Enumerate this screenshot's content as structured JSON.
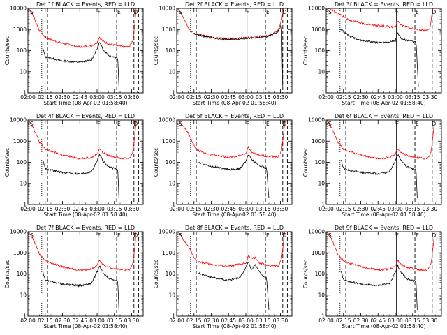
{
  "chart_data": {
    "type": "line",
    "y_scale": "log",
    "ylim": [
      1,
      10000
    ],
    "x_range": [
      "02:00",
      "03:40"
    ],
    "xticks": [
      "02:00",
      "02:15",
      "02:30",
      "02:45",
      "03:00",
      "03:15",
      "03:30"
    ],
    "yticks": [
      "1",
      "10",
      "100",
      "1000",
      "10000"
    ],
    "xlabel": "Start Time (08-Apr-02 01:58:40)",
    "ylabel": "Counts/sec",
    "markers": [
      "S",
      "F",
      "E",
      "D"
    ],
    "series_colors": {
      "events": "#000000",
      "lld": "#ff0000"
    },
    "vlines": [
      {
        "t": "02:12",
        "style": "dotted"
      },
      {
        "t": "02:17",
        "style": "dashed"
      },
      {
        "t": "03:01",
        "style": "solid"
      },
      {
        "t": "03:17",
        "style": "dashed"
      },
      {
        "t": "03:32",
        "style": "dashed"
      },
      {
        "t": "03:36",
        "style": "dashed"
      }
    ],
    "panels": [
      {
        "title": "Det 1f BLACK = Events, RED = LLD",
        "lld": [
          [
            "02:00",
            12000
          ],
          [
            "02:05",
            4000
          ],
          [
            "02:10",
            900
          ],
          [
            "02:15",
            420
          ],
          [
            "02:20",
            330
          ],
          [
            "02:30",
            220
          ],
          [
            "02:45",
            150
          ],
          [
            "02:55",
            170
          ],
          [
            "03:00",
            240
          ],
          [
            "03:02",
            450
          ],
          [
            "03:05",
            280
          ],
          [
            "03:10",
            210
          ],
          [
            "03:20",
            160
          ],
          [
            "03:28",
            150
          ],
          [
            "03:31",
            300
          ],
          [
            "03:33",
            2500
          ],
          [
            "03:34",
            12000
          ]
        ],
        "events": [
          [
            "02:13",
            130
          ],
          [
            "02:15",
            50
          ],
          [
            "02:30",
            33
          ],
          [
            "02:45",
            28
          ],
          [
            "02:55",
            35
          ],
          [
            "03:00",
            120
          ],
          [
            "03:02",
            250
          ],
          [
            "03:05",
            120
          ],
          [
            "03:10",
            60
          ],
          [
            "03:15",
            50
          ],
          [
            "03:18",
            45
          ],
          [
            "03:19",
            2
          ]
        ]
      },
      {
        "title": "Det 2f BLACK = Events, RED = LLD",
        "lld": [
          [
            "02:00",
            12000
          ],
          [
            "02:05",
            4500
          ],
          [
            "02:10",
            1200
          ],
          [
            "02:15",
            650
          ],
          [
            "02:30",
            430
          ],
          [
            "02:45",
            360
          ],
          [
            "03:00",
            400
          ],
          [
            "03:10",
            450
          ],
          [
            "03:20",
            520
          ],
          [
            "03:28",
            900
          ],
          [
            "03:31",
            3000
          ],
          [
            "03:33",
            12000
          ]
        ],
        "events": [
          [
            "02:15",
            600
          ],
          [
            "02:30",
            400
          ],
          [
            "02:45",
            330
          ],
          [
            "03:00",
            380
          ],
          [
            "03:10",
            400
          ],
          [
            "03:20",
            480
          ],
          [
            "03:28",
            800
          ],
          [
            "03:31",
            1800
          ],
          [
            "03:32",
            2
          ]
        ]
      },
      {
        "title": "Det 3f BLACK = Events, RED = LLD",
        "lld": [
          [
            "02:00",
            12000
          ],
          [
            "02:10",
            6000
          ],
          [
            "02:20",
            2800
          ],
          [
            "02:30",
            2000
          ],
          [
            "02:45",
            1500
          ],
          [
            "03:00",
            1300
          ],
          [
            "03:02",
            2600
          ],
          [
            "03:05",
            1600
          ],
          [
            "03:15",
            1100
          ],
          [
            "03:25",
            900
          ],
          [
            "03:30",
            1100
          ],
          [
            "03:32",
            6000
          ],
          [
            "03:33",
            12000
          ]
        ],
        "events": [
          [
            "02:12",
            1100
          ],
          [
            "02:20",
            500
          ],
          [
            "02:30",
            300
          ],
          [
            "02:45",
            240
          ],
          [
            "03:00",
            280
          ],
          [
            "03:02",
            700
          ],
          [
            "03:05",
            360
          ],
          [
            "03:10",
            300
          ],
          [
            "03:18",
            250
          ],
          [
            "03:20",
            2
          ]
        ]
      },
      {
        "title": "Det 4f BLACK = Events, RED = LLD",
        "lld": [
          [
            "02:00",
            12000
          ],
          [
            "02:05",
            4000
          ],
          [
            "02:10",
            900
          ],
          [
            "02:15",
            420
          ],
          [
            "02:20",
            330
          ],
          [
            "02:30",
            220
          ],
          [
            "02:45",
            150
          ],
          [
            "02:55",
            170
          ],
          [
            "03:00",
            240
          ],
          [
            "03:02",
            450
          ],
          [
            "03:05",
            280
          ],
          [
            "03:10",
            210
          ],
          [
            "03:20",
            160
          ],
          [
            "03:28",
            150
          ],
          [
            "03:31",
            300
          ],
          [
            "03:33",
            2500
          ],
          [
            "03:34",
            12000
          ]
        ],
        "events": [
          [
            "02:13",
            130
          ],
          [
            "02:15",
            50
          ],
          [
            "02:30",
            33
          ],
          [
            "02:45",
            28
          ],
          [
            "02:55",
            35
          ],
          [
            "03:00",
            120
          ],
          [
            "03:02",
            250
          ],
          [
            "03:05",
            120
          ],
          [
            "03:10",
            60
          ],
          [
            "03:15",
            50
          ],
          [
            "03:18",
            45
          ],
          [
            "03:19",
            2
          ]
        ]
      },
      {
        "title": "Det 5f BLACK = Events, RED = LLD",
        "lld": [
          [
            "02:00",
            12000
          ],
          [
            "02:10",
            2500
          ],
          [
            "02:17",
            380
          ],
          [
            "02:30",
            230
          ],
          [
            "02:45",
            170
          ],
          [
            "03:00",
            240
          ],
          [
            "03:02",
            550
          ],
          [
            "03:05",
            280
          ],
          [
            "03:15",
            200
          ],
          [
            "03:28",
            180
          ],
          [
            "03:31",
            350
          ],
          [
            "03:33",
            3000
          ],
          [
            "03:34",
            12000
          ]
        ],
        "events": [
          [
            "02:19",
            100
          ],
          [
            "02:30",
            65
          ],
          [
            "02:45",
            45
          ],
          [
            "02:55",
            50
          ],
          [
            "03:00",
            110
          ],
          [
            "03:02",
            240
          ],
          [
            "03:05",
            140
          ],
          [
            "03:10",
            80
          ],
          [
            "03:15",
            60
          ],
          [
            "03:18",
            50
          ],
          [
            "03:20",
            2
          ]
        ]
      },
      {
        "title": "Det 6f BLACK = Events, RED = LLD",
        "lld": [
          [
            "02:00",
            12000
          ],
          [
            "02:05",
            4000
          ],
          [
            "02:10",
            900
          ],
          [
            "02:15",
            420
          ],
          [
            "02:20",
            330
          ],
          [
            "02:30",
            220
          ],
          [
            "02:45",
            150
          ],
          [
            "02:55",
            170
          ],
          [
            "03:00",
            240
          ],
          [
            "03:02",
            450
          ],
          [
            "03:05",
            280
          ],
          [
            "03:10",
            210
          ],
          [
            "03:20",
            160
          ],
          [
            "03:28",
            150
          ],
          [
            "03:31",
            300
          ],
          [
            "03:33",
            2500
          ],
          [
            "03:34",
            12000
          ]
        ],
        "events": [
          [
            "02:13",
            130
          ],
          [
            "02:15",
            50
          ],
          [
            "02:30",
            33
          ],
          [
            "02:45",
            28
          ],
          [
            "02:55",
            35
          ],
          [
            "03:00",
            120
          ],
          [
            "03:02",
            250
          ],
          [
            "03:05",
            120
          ],
          [
            "03:10",
            60
          ],
          [
            "03:15",
            50
          ],
          [
            "03:18",
            45
          ],
          [
            "03:19",
            2
          ]
        ]
      },
      {
        "title": "Det 7f BLACK = Events, RED = LLD",
        "lld": [
          [
            "02:00",
            12000
          ],
          [
            "02:05",
            4000
          ],
          [
            "02:10",
            900
          ],
          [
            "02:15",
            420
          ],
          [
            "02:20",
            330
          ],
          [
            "02:30",
            220
          ],
          [
            "02:45",
            150
          ],
          [
            "02:55",
            170
          ],
          [
            "03:00",
            240
          ],
          [
            "03:02",
            450
          ],
          [
            "03:05",
            280
          ],
          [
            "03:10",
            210
          ],
          [
            "03:20",
            160
          ],
          [
            "03:28",
            150
          ],
          [
            "03:31",
            300
          ],
          [
            "03:33",
            2500
          ],
          [
            "03:34",
            12000
          ]
        ],
        "events": [
          [
            "02:13",
            130
          ],
          [
            "02:15",
            50
          ],
          [
            "02:30",
            33
          ],
          [
            "02:45",
            28
          ],
          [
            "02:55",
            35
          ],
          [
            "03:00",
            120
          ],
          [
            "03:02",
            250
          ],
          [
            "03:05",
            120
          ],
          [
            "03:10",
            60
          ],
          [
            "03:15",
            50
          ],
          [
            "03:18",
            45
          ],
          [
            "03:19",
            2
          ]
        ]
      },
      {
        "title": "Det 8f BLACK = Events, RED = LLD",
        "lld": [
          [
            "02:00",
            12000
          ],
          [
            "02:10",
            2000
          ],
          [
            "02:17",
            400
          ],
          [
            "02:30",
            280
          ],
          [
            "02:45",
            230
          ],
          [
            "03:00",
            320
          ],
          [
            "03:02",
            700
          ],
          [
            "03:05",
            520
          ],
          [
            "03:08",
            600
          ],
          [
            "03:12",
            320
          ],
          [
            "03:20",
            250
          ],
          [
            "03:28",
            230
          ],
          [
            "03:31",
            500
          ],
          [
            "03:33",
            5000
          ],
          [
            "03:34",
            12000
          ]
        ],
        "events": [
          [
            "02:19",
            110
          ],
          [
            "02:30",
            70
          ],
          [
            "02:45",
            50
          ],
          [
            "02:55",
            70
          ],
          [
            "03:00",
            200
          ],
          [
            "03:02",
            400
          ],
          [
            "03:05",
            150
          ],
          [
            "03:08",
            280
          ],
          [
            "03:12",
            120
          ],
          [
            "03:18",
            60
          ],
          [
            "03:20",
            2
          ]
        ]
      },
      {
        "title": "Det 9f BLACK = Events, RED = LLD",
        "lld": [
          [
            "02:00",
            12000
          ],
          [
            "02:05",
            4000
          ],
          [
            "02:10",
            900
          ],
          [
            "02:15",
            420
          ],
          [
            "02:20",
            330
          ],
          [
            "02:30",
            220
          ],
          [
            "02:45",
            150
          ],
          [
            "02:55",
            170
          ],
          [
            "03:00",
            240
          ],
          [
            "03:02",
            450
          ],
          [
            "03:05",
            280
          ],
          [
            "03:10",
            210
          ],
          [
            "03:20",
            160
          ],
          [
            "03:28",
            150
          ],
          [
            "03:31",
            300
          ],
          [
            "03:33",
            2500
          ],
          [
            "03:34",
            12000
          ]
        ],
        "events": [
          [
            "02:13",
            130
          ],
          [
            "02:15",
            50
          ],
          [
            "02:30",
            33
          ],
          [
            "02:45",
            28
          ],
          [
            "02:55",
            35
          ],
          [
            "03:00",
            120
          ],
          [
            "03:02",
            250
          ],
          [
            "03:05",
            120
          ],
          [
            "03:10",
            60
          ],
          [
            "03:15",
            50
          ],
          [
            "03:18",
            45
          ],
          [
            "03:19",
            2
          ]
        ]
      }
    ]
  }
}
